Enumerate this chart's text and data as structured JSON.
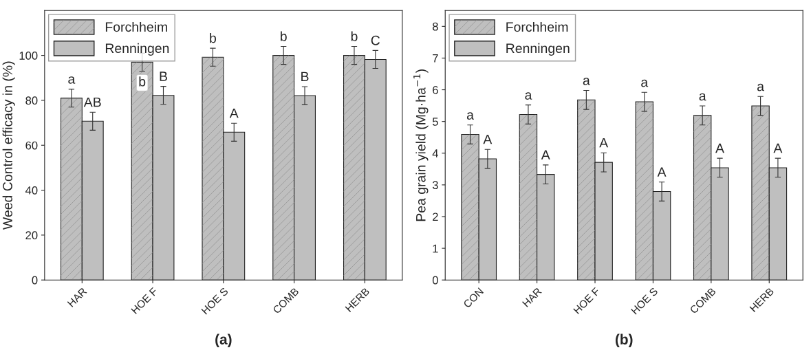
{
  "chart_data": [
    {
      "type": "bar",
      "title": "(a)",
      "ylabel": "Weed Control efficacy in (%)",
      "categories": [
        "HAR",
        "HOE F",
        "HOE S",
        "COMB",
        "HERB"
      ],
      "ylim": [
        0,
        120
      ],
      "yticks": [
        0,
        20,
        40,
        60,
        80,
        100
      ],
      "legend": "top left",
      "grid": false,
      "series": [
        {
          "name": "Forchheim",
          "color": "#bfbfbf",
          "values": [
            81,
            97,
            99.2,
            100,
            100
          ],
          "errors": [
            4,
            4,
            4,
            4,
            4
          ],
          "value_labels": [
            "a",
            "b",
            "b",
            "b",
            "b"
          ]
        },
        {
          "name": "Renningen",
          "color": "#bfbfbf",
          "values": [
            70.7,
            82.2,
            65.8,
            82.1,
            98.2
          ],
          "errors": [
            4,
            4,
            4,
            4,
            4
          ],
          "value_labels": [
            "AB",
            "B",
            "A",
            "B",
            "C"
          ]
        }
      ]
    },
    {
      "type": "bar",
      "title": "(b)",
      "ylabel": "Pea grain yield (Mg·ha$^{−1}$)",
      "categories": [
        "CON",
        "HAR",
        "HOE F",
        "HOE S",
        "COMB",
        "HERB"
      ],
      "ylim": [
        0,
        8.5
      ],
      "yticks": [
        0,
        1,
        2,
        3,
        4,
        5,
        6,
        7,
        8
      ],
      "legend": "top left",
      "grid": false,
      "series": [
        {
          "name": "Forchheim",
          "color": "#bfbfbf",
          "values": [
            4.59,
            5.22,
            5.68,
            5.62,
            5.19,
            5.49
          ],
          "errors": [
            0.3,
            0.3,
            0.3,
            0.3,
            0.3,
            0.3
          ],
          "value_labels": [
            "a",
            "a",
            "a",
            "a",
            "a",
            "a"
          ]
        },
        {
          "name": "Renningen",
          "color": "#bfbfbf",
          "values": [
            3.82,
            3.33,
            3.71,
            2.79,
            3.54,
            3.54
          ],
          "errors": [
            0.3,
            0.3,
            0.3,
            0.3,
            0.3,
            0.3
          ],
          "value_labels": [
            "A",
            "A",
            "A",
            "A",
            "A",
            "A"
          ]
        }
      ]
    }
  ]
}
